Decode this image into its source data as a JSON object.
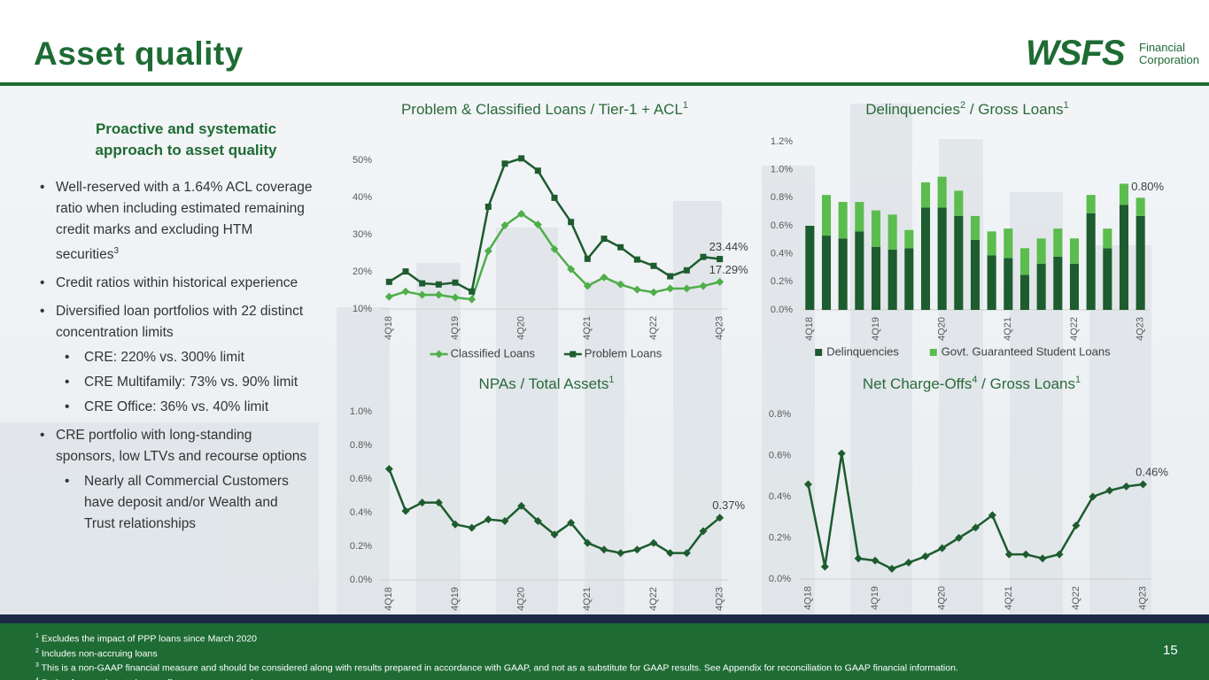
{
  "header": {
    "title": "Asset quality",
    "logo": {
      "name": "WSFS",
      "line1": "Financial",
      "line2": "Corporation"
    }
  },
  "summary": {
    "heading": "Proactive and systematic approach to asset quality",
    "bullets": [
      {
        "text": "Well-reserved with a 1.64% ACL coverage ratio when including estimated remaining credit marks and excluding HTM securities",
        "sup": "3"
      },
      {
        "text": "Credit ratios within historical experience"
      },
      {
        "text": "Diversified loan portfolios with 22 distinct concentration limits",
        "sub": [
          "CRE: 220% vs. 300% limit",
          "CRE Multifamily: 73% vs. 90% limit",
          "CRE Office: 36% vs. 40% limit"
        ]
      },
      {
        "text": "CRE portfolio with long-standing sponsors, low LTVs and recourse options",
        "sub": [
          "Nearly all Commercial Customers have deposit and/or Wealth and Trust relationships"
        ]
      }
    ]
  },
  "chart_data": [
    {
      "type": "line",
      "title": [
        {
          "text": "Problem & Classified Loans / Tier-1 + ACL",
          "sup": "1"
        }
      ],
      "categories": [
        "4Q18",
        null,
        null,
        null,
        "4Q19",
        null,
        null,
        null,
        "4Q20",
        null,
        null,
        null,
        "4Q21",
        null,
        null,
        null,
        "4Q22",
        null,
        null,
        null,
        "4Q23"
      ],
      "series": [
        {
          "name": "Classified Loans",
          "color": "#4fae4a",
          "marker": "diamond",
          "values": [
            13.3,
            14.7,
            13.8,
            13.8,
            13.1,
            12.6,
            25.6,
            32.5,
            35.6,
            32.7,
            26.1,
            20.7,
            16.2,
            18.5,
            16.6,
            15.2,
            14.5,
            15.5,
            15.5,
            16.2,
            17.29
          ],
          "value_labels": [
            null,
            null,
            null,
            null,
            null,
            null,
            null,
            null,
            null,
            null,
            null,
            null,
            null,
            null,
            null,
            null,
            null,
            null,
            null,
            null,
            "17.29%"
          ]
        },
        {
          "name": "Problem Loans",
          "color": "#1d5c2e",
          "marker": "square",
          "values": [
            17.3,
            20.1,
            16.9,
            16.6,
            17.1,
            14.7,
            37.5,
            49.1,
            50.5,
            47.2,
            39.9,
            33.4,
            23.5,
            28.9,
            26.6,
            23.3,
            21.6,
            18.8,
            20.4,
            24.0,
            23.44
          ],
          "value_labels": [
            null,
            null,
            null,
            null,
            null,
            null,
            null,
            null,
            null,
            null,
            null,
            null,
            null,
            null,
            null,
            null,
            null,
            null,
            null,
            null,
            "23.44%"
          ]
        }
      ],
      "ylim": [
        10,
        55
      ],
      "yticks": [
        {
          "value": 10,
          "label": "10%"
        },
        {
          "value": 20,
          "label": "20%"
        },
        {
          "value": 30,
          "label": "30%"
        },
        {
          "value": 40,
          "label": "40%"
        },
        {
          "value": 50,
          "label": "50%"
        }
      ],
      "grid": false,
      "legend": "bottom"
    },
    {
      "type": "bar",
      "stacked": true,
      "title": [
        {
          "text": "Delinquencies",
          "sup": "2"
        },
        {
          "text": " / Gross Loans",
          "sup": "1"
        }
      ],
      "categories": [
        "4Q18",
        null,
        null,
        null,
        "4Q19",
        null,
        null,
        null,
        "4Q20",
        null,
        null,
        null,
        "4Q21",
        null,
        null,
        null,
        "4Q22",
        null,
        null,
        null,
        "4Q23"
      ],
      "series": [
        {
          "name": "Delinquencies",
          "color": "#1d5c2e",
          "values": [
            0.6,
            0.53,
            0.51,
            0.56,
            0.45,
            0.43,
            0.44,
            0.73,
            0.73,
            0.67,
            0.5,
            0.39,
            0.37,
            0.25,
            0.33,
            0.38,
            0.33,
            0.69,
            0.44,
            0.75,
            0.67
          ]
        },
        {
          "name": "Govt. Guaranteed Student Loans",
          "color": "#5cbd4f",
          "values": [
            0,
            0.29,
            0.26,
            0.21,
            0.26,
            0.25,
            0.13,
            0.18,
            0.22,
            0.18,
            0.17,
            0.17,
            0.21,
            0.19,
            0.18,
            0.2,
            0.18,
            0.13,
            0.14,
            0.15,
            0.13
          ]
        }
      ],
      "annotation": "0.80%",
      "ylim": [
        0,
        1.2
      ],
      "yticks": [
        {
          "value": 0,
          "label": "0.0%"
        },
        {
          "value": 0.2,
          "label": "0.2%"
        },
        {
          "value": 0.4,
          "label": "0.4%"
        },
        {
          "value": 0.6,
          "label": "0.6%"
        },
        {
          "value": 0.8,
          "label": "0.8%"
        },
        {
          "value": 1.0,
          "label": "1.0%"
        },
        {
          "value": 1.2,
          "label": "1.2%"
        }
      ],
      "grid": false,
      "legend": "bottom"
    },
    {
      "type": "line",
      "title": [
        {
          "text": "NPAs / Total Assets",
          "sup": "1"
        }
      ],
      "categories": [
        "4Q18",
        null,
        null,
        null,
        "4Q19",
        null,
        null,
        null,
        "4Q20",
        null,
        null,
        null,
        "4Q21",
        null,
        null,
        null,
        "4Q22",
        null,
        null,
        null,
        "4Q23"
      ],
      "series": [
        {
          "color": "#1d5c2e",
          "marker": "diamond",
          "values": [
            0.66,
            0.41,
            0.46,
            0.46,
            0.33,
            0.31,
            0.36,
            0.35,
            0.44,
            0.35,
            0.27,
            0.34,
            0.22,
            0.18,
            0.16,
            0.18,
            0.22,
            0.16,
            0.16,
            0.29,
            0.37
          ],
          "value_labels": [
            null,
            null,
            null,
            null,
            null,
            null,
            null,
            null,
            null,
            null,
            null,
            null,
            null,
            null,
            null,
            null,
            null,
            null,
            null,
            null,
            "0.37%"
          ]
        }
      ],
      "ylim": [
        0,
        1.0
      ],
      "yticks": [
        {
          "value": 0,
          "label": "0.0%"
        },
        {
          "value": 0.2,
          "label": "0.2%"
        },
        {
          "value": 0.4,
          "label": "0.4%"
        },
        {
          "value": 0.6,
          "label": "0.6%"
        },
        {
          "value": 0.8,
          "label": "0.8%"
        },
        {
          "value": 1.0,
          "label": "1.0%"
        }
      ],
      "grid": false
    },
    {
      "type": "line",
      "title": [
        {
          "text": "Net Charge-Offs",
          "sup": "4"
        },
        {
          "text": " / Gross Loans",
          "sup": "1"
        }
      ],
      "categories": [
        "4Q18",
        null,
        null,
        null,
        "4Q19",
        null,
        null,
        null,
        "4Q20",
        null,
        null,
        null,
        "4Q21",
        null,
        null,
        null,
        "4Q22",
        null,
        null,
        null,
        "4Q23"
      ],
      "series": [
        {
          "color": "#1d5c2e",
          "marker": "diamond",
          "values": [
            0.46,
            0.06,
            0.61,
            0.1,
            0.09,
            0.05,
            0.08,
            0.11,
            0.15,
            0.2,
            0.25,
            0.31,
            0.12,
            0.12,
            0.1,
            0.12,
            0.26,
            0.4,
            0.43,
            0.45,
            0.46
          ],
          "value_labels": [
            null,
            null,
            null,
            null,
            null,
            null,
            null,
            null,
            null,
            null,
            null,
            null,
            null,
            null,
            null,
            null,
            null,
            null,
            null,
            null,
            "0.46%"
          ]
        }
      ],
      "ylim": [
        0,
        0.8
      ],
      "yticks": [
        {
          "value": 0,
          "label": "0.0%"
        },
        {
          "value": 0.2,
          "label": "0.2%"
        },
        {
          "value": 0.4,
          "label": "0.4%"
        },
        {
          "value": 0.6,
          "label": "0.6%"
        },
        {
          "value": 0.8,
          "label": "0.8%"
        }
      ],
      "grid": false
    }
  ],
  "footnotes": [
    {
      "mark": "1",
      "text": "Excludes the impact of PPP loans since March 2020"
    },
    {
      "mark": "2",
      "text": "Includes non-accruing loans"
    },
    {
      "mark": "3",
      "text": "This is a non-GAAP financial measure and should be considered along with results prepared in accordance with GAAP, and not as a substitute for GAAP results.  See Appendix for reconciliation to GAAP financial information."
    },
    {
      "mark": "4",
      "text": "Ratio of quarterly net charge-offs to average gross loans"
    }
  ],
  "page_number": "15"
}
